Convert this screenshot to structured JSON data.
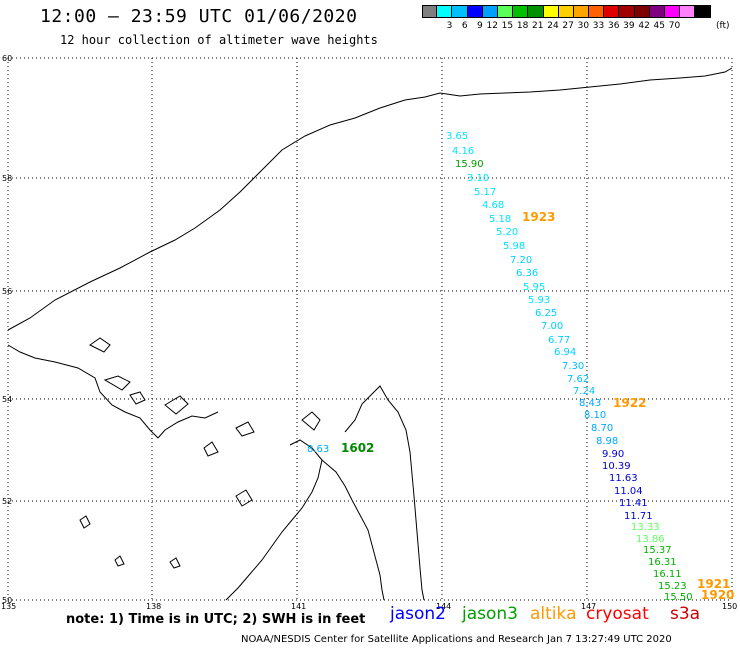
{
  "header": {
    "title": "12:00 — 23:59 UTC 01/06/2020",
    "subtitle": "12 hour collection of altimeter wave heights"
  },
  "colorbar": {
    "colors": [
      "#7f7f7f",
      "#00ffff",
      "#00bfff",
      "#0000ff",
      "#00a0ff",
      "#5aff5a",
      "#00c000",
      "#009000",
      "#ffff00",
      "#ffd000",
      "#ffa500",
      "#ff6000",
      "#e00000",
      "#a00000",
      "#7f0000",
      "#800080",
      "#ff00ff",
      "#ff80ff",
      "#000000"
    ],
    "labels": [
      "",
      "3",
      "6",
      "9",
      "12",
      "15",
      "18",
      "21",
      "24",
      "27",
      "30",
      "33",
      "36",
      "39",
      "42",
      "45",
      "70"
    ],
    "unit": "(ft)"
  },
  "axes": {
    "lat_labels": [
      "60",
      "58",
      "56",
      "54",
      "52",
      "50"
    ],
    "lon_labels": [
      "135",
      "138",
      "141",
      "144",
      "147",
      "150"
    ]
  },
  "observations": [
    {
      "text": "3.65",
      "color": "#00e5ff"
    },
    {
      "text": "4.16",
      "color": "#00e5ff"
    },
    {
      "text": "15.90",
      "color": "#00a000"
    },
    {
      "text": "3.10",
      "color": "#00e5ff"
    },
    {
      "text": "5.17",
      "color": "#00e5ff"
    },
    {
      "text": "4.68",
      "color": "#00e5ff"
    },
    {
      "text": "5.18",
      "color": "#00e5ff"
    },
    {
      "text": "5.20",
      "color": "#00e5ff"
    },
    {
      "text": "5.98",
      "color": "#00e5ff"
    },
    {
      "text": "7.20",
      "color": "#00d0ff"
    },
    {
      "text": "6.36",
      "color": "#00d0ff"
    },
    {
      "text": "5.95",
      "color": "#00e5ff"
    },
    {
      "text": "5.93",
      "color": "#00e5ff"
    },
    {
      "text": "6.25",
      "color": "#00d0ff"
    },
    {
      "text": "7.00",
      "color": "#00d0ff"
    },
    {
      "text": "6.77",
      "color": "#00d0ff"
    },
    {
      "text": "6.94",
      "color": "#00d0ff"
    },
    {
      "text": "7.30",
      "color": "#00c0ff"
    },
    {
      "text": "7.62",
      "color": "#00c0ff"
    },
    {
      "text": "7.24",
      "color": "#00c0ff"
    },
    {
      "text": "8.43",
      "color": "#00a8ff"
    },
    {
      "text": "8.10",
      "color": "#00a8ff"
    },
    {
      "text": "8.70",
      "color": "#00a8ff"
    },
    {
      "text": "8.98",
      "color": "#00a8ff"
    },
    {
      "text": "9.90",
      "color": "#0000d0"
    },
    {
      "text": "10.39",
      "color": "#0000d0"
    },
    {
      "text": "11.63",
      "color": "#0000d0"
    },
    {
      "text": "11.04",
      "color": "#0000d0"
    },
    {
      "text": "11.41",
      "color": "#0000d0"
    },
    {
      "text": "11.71",
      "color": "#0000d0"
    },
    {
      "text": "13.33",
      "color": "#60ff60"
    },
    {
      "text": "13.86",
      "color": "#60ff60"
    },
    {
      "text": "15.37",
      "color": "#00b000"
    },
    {
      "text": "16.31",
      "color": "#00b000"
    },
    {
      "text": "16.11",
      "color": "#00b000"
    },
    {
      "text": "15.23",
      "color": "#00b000"
    },
    {
      "text": "15.50",
      "color": "#00b000"
    },
    {
      "text": "8.63",
      "color": "#00a8ff"
    }
  ],
  "pass_times": [
    {
      "text": "1923",
      "color": "#ff9900"
    },
    {
      "text": "1922",
      "color": "#ff9900"
    },
    {
      "text": "1921",
      "color": "#ff9900"
    },
    {
      "text": "1920",
      "color": "#ff9900"
    },
    {
      "text": "1602",
      "color": "#008800"
    }
  ],
  "footer": {
    "note": "note: 1) Time is in UTC; 2) SWH is in feet",
    "legend": [
      {
        "text": "jason2",
        "color": "#0000ff"
      },
      {
        "text": "jason3",
        "color": "#00a000"
      },
      {
        "text": "altika",
        "color": "#ff9900"
      },
      {
        "text": "cryosat",
        "color": "#ff0000"
      },
      {
        "text": "s3a",
        "color": "#cc0000"
      }
    ],
    "credit": "NOAA/NESDIS Center for Satellite Applications and Research   Jan  7 13:27:49 UTC 2020"
  }
}
